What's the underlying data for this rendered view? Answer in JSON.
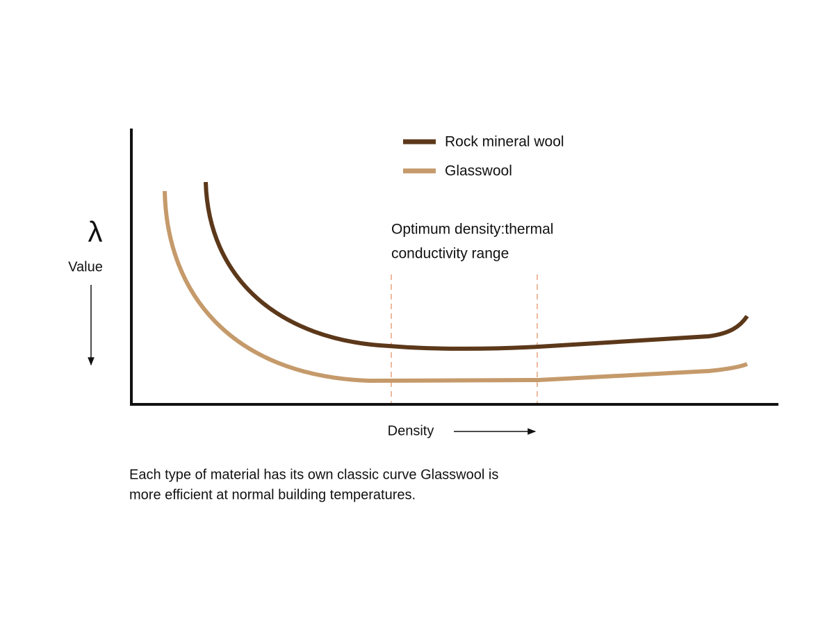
{
  "legend": [
    {
      "label": "Rock mineral wool",
      "color": "#5c381a"
    },
    {
      "label": "Glasswool",
      "color": "#c59a6b"
    }
  ],
  "axis": {
    "y_symbol": "λ",
    "y_label": "Value",
    "x_label": "Density"
  },
  "annotation": {
    "lines": [
      "Optimum density:thermal",
      "conductivity range"
    ]
  },
  "caption": {
    "lines": [
      "Each type of material has its own classic curve Glasswool is",
      "more efficient at normal building temperatures."
    ]
  }
}
